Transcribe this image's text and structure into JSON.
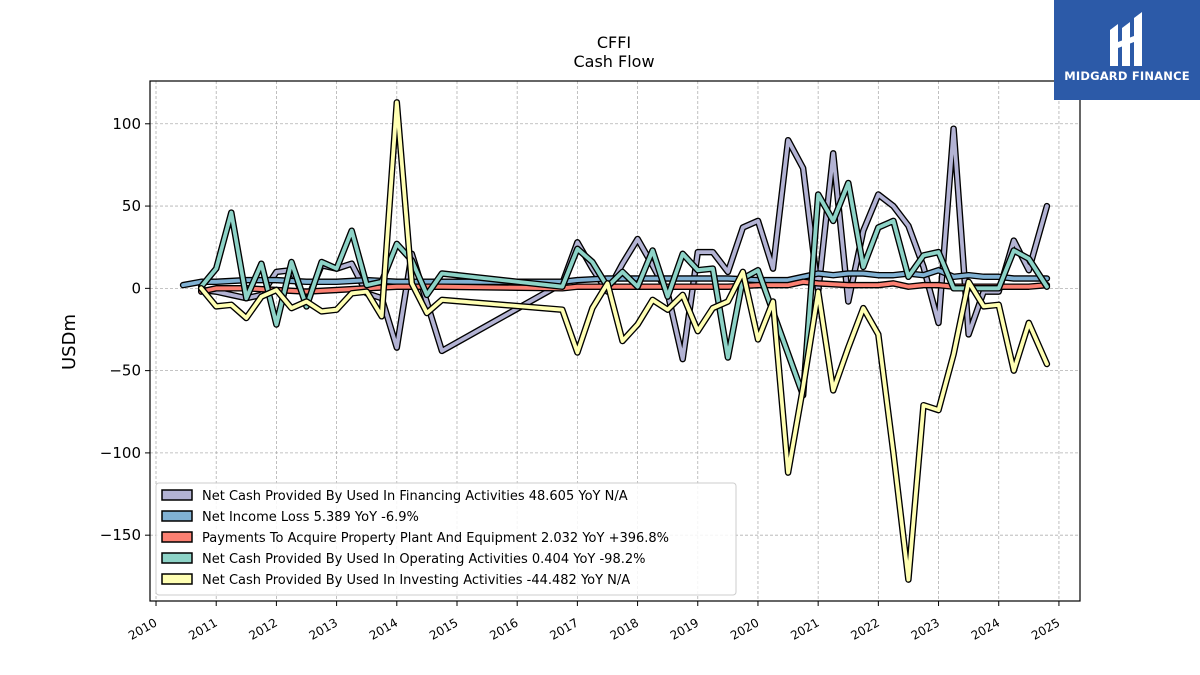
{
  "logo": {
    "text": "MIDGARD FINANCE",
    "color": "#2c5aa8"
  },
  "chart_data": {
    "type": "line",
    "title": "CFFI",
    "subtitle": "Cash Flow",
    "ylabel": "USDm",
    "xlabel": "",
    "ylim": [
      -190,
      126
    ],
    "xlim": [
      2009.9,
      2025.35
    ],
    "x_ticks": [
      2010,
      2011,
      2012,
      2013,
      2014,
      2015,
      2016,
      2017,
      2018,
      2019,
      2020,
      2021,
      2022,
      2023,
      2024,
      2025
    ],
    "y_ticks": [
      100,
      50,
      0,
      -50,
      -100,
      -150
    ],
    "y_tick_labels": [
      "100",
      "50",
      "0",
      "−50",
      "−100",
      "−150"
    ],
    "grid": true,
    "legend_position": "lower-left",
    "series": [
      {
        "name": "Net Cash Provided By Used In Financing Activities  48.605 YoY N/A",
        "color": "#b3b3d4",
        "points": [
          [
            2010.75,
            -1
          ],
          [
            2011.0,
            -2
          ],
          [
            2011.25,
            -4
          ],
          [
            2011.5,
            -6
          ],
          [
            2011.75,
            -4
          ],
          [
            2012.0,
            10
          ],
          [
            2012.25,
            11
          ],
          [
            2012.5,
            -8
          ],
          [
            2012.75,
            14
          ],
          [
            2013.0,
            12
          ],
          [
            2013.25,
            15
          ],
          [
            2013.5,
            -3
          ],
          [
            2013.75,
            -6
          ],
          [
            2014.0,
            -36
          ],
          [
            2014.25,
            21
          ],
          [
            2014.75,
            -38
          ],
          [
            2016.75,
            3
          ],
          [
            2017.0,
            28
          ],
          [
            2017.25,
            12
          ],
          [
            2017.5,
            -2
          ],
          [
            2017.75,
            15
          ],
          [
            2018.0,
            30
          ],
          [
            2018.25,
            14
          ],
          [
            2018.5,
            -3
          ],
          [
            2018.75,
            -43
          ],
          [
            2019.0,
            22
          ],
          [
            2019.25,
            22
          ],
          [
            2019.5,
            10
          ],
          [
            2019.75,
            37
          ],
          [
            2020.0,
            41
          ],
          [
            2020.25,
            12
          ],
          [
            2020.5,
            90
          ],
          [
            2020.75,
            73
          ],
          [
            2021.0,
            -2
          ],
          [
            2021.25,
            82
          ],
          [
            2021.5,
            -8
          ],
          [
            2021.75,
            35
          ],
          [
            2022.0,
            57
          ],
          [
            2022.25,
            50
          ],
          [
            2022.5,
            38
          ],
          [
            2022.75,
            13
          ],
          [
            2023.0,
            -21
          ],
          [
            2023.25,
            97
          ],
          [
            2023.5,
            -28
          ],
          [
            2023.75,
            -2
          ],
          [
            2024.0,
            -2
          ],
          [
            2024.25,
            29
          ],
          [
            2024.5,
            11
          ],
          [
            2024.8,
            50
          ]
        ]
      },
      {
        "name": "Net Income Loss  5.389 YoY -6.9%",
        "color": "#80b1d3",
        "points": [
          [
            2010.45,
            2
          ],
          [
            2010.75,
            4
          ],
          [
            2011.0,
            4
          ],
          [
            2011.5,
            5
          ],
          [
            2012.0,
            5
          ],
          [
            2012.5,
            4
          ],
          [
            2013.0,
            4
          ],
          [
            2013.5,
            5
          ],
          [
            2014.0,
            4
          ],
          [
            2014.75,
            4
          ],
          [
            2016.75,
            4
          ],
          [
            2017.0,
            5
          ],
          [
            2017.5,
            6
          ],
          [
            2018.0,
            6
          ],
          [
            2018.5,
            6
          ],
          [
            2019.0,
            6
          ],
          [
            2019.5,
            6
          ],
          [
            2020.0,
            5
          ],
          [
            2020.5,
            5
          ],
          [
            2020.75,
            7
          ],
          [
            2021.0,
            9
          ],
          [
            2021.25,
            8
          ],
          [
            2021.5,
            9
          ],
          [
            2021.75,
            9
          ],
          [
            2022.0,
            8
          ],
          [
            2022.25,
            8
          ],
          [
            2022.5,
            9
          ],
          [
            2022.75,
            8
          ],
          [
            2023.0,
            11
          ],
          [
            2023.25,
            7
          ],
          [
            2023.5,
            8
          ],
          [
            2023.75,
            7
          ],
          [
            2024.0,
            7
          ],
          [
            2024.25,
            6
          ],
          [
            2024.5,
            6
          ],
          [
            2024.8,
            6
          ]
        ]
      },
      {
        "name": "Payments To Acquire Property Plant And Equipment  2.032 YoY +396.8%",
        "color": "#fb8072",
        "points": [
          [
            2010.75,
            -2
          ],
          [
            2011.0,
            0
          ],
          [
            2011.5,
            0
          ],
          [
            2012.0,
            -1
          ],
          [
            2012.5,
            -2
          ],
          [
            2013.0,
            -1
          ],
          [
            2013.5,
            0
          ],
          [
            2014.0,
            1
          ],
          [
            2014.75,
            1
          ],
          [
            2016.75,
            0
          ],
          [
            2017.0,
            1
          ],
          [
            2017.5,
            1
          ],
          [
            2018.0,
            1
          ],
          [
            2018.5,
            1
          ],
          [
            2019.0,
            1
          ],
          [
            2019.5,
            1
          ],
          [
            2020.0,
            2
          ],
          [
            2020.5,
            2
          ],
          [
            2020.75,
            4
          ],
          [
            2021.0,
            3
          ],
          [
            2021.5,
            2
          ],
          [
            2022.0,
            2
          ],
          [
            2022.25,
            3
          ],
          [
            2022.5,
            1
          ],
          [
            2022.75,
            2
          ],
          [
            2023.0,
            2
          ],
          [
            2023.25,
            1
          ],
          [
            2023.5,
            1
          ],
          [
            2024.0,
            1
          ],
          [
            2024.5,
            1
          ],
          [
            2024.8,
            2
          ]
        ]
      },
      {
        "name": "Net Cash Provided By Used In Operating Activities  0.404 YoY -98.2%",
        "color": "#8dd3c7",
        "points": [
          [
            2010.75,
            1
          ],
          [
            2011.0,
            12
          ],
          [
            2011.25,
            46
          ],
          [
            2011.5,
            -6
          ],
          [
            2011.75,
            15
          ],
          [
            2012.0,
            -22
          ],
          [
            2012.25,
            16
          ],
          [
            2012.5,
            -11
          ],
          [
            2012.75,
            16
          ],
          [
            2013.0,
            12
          ],
          [
            2013.25,
            35
          ],
          [
            2013.5,
            2
          ],
          [
            2013.75,
            4
          ],
          [
            2014.0,
            27
          ],
          [
            2014.25,
            17
          ],
          [
            2014.5,
            -4
          ],
          [
            2014.75,
            9
          ],
          [
            2016.75,
            1
          ],
          [
            2017.0,
            24
          ],
          [
            2017.25,
            16
          ],
          [
            2017.5,
            1
          ],
          [
            2017.75,
            10
          ],
          [
            2018.0,
            1
          ],
          [
            2018.25,
            23
          ],
          [
            2018.5,
            -5
          ],
          [
            2018.75,
            21
          ],
          [
            2019.0,
            11
          ],
          [
            2019.25,
            12
          ],
          [
            2019.5,
            -42
          ],
          [
            2019.75,
            6
          ],
          [
            2020.0,
            11
          ],
          [
            2020.75,
            -65
          ],
          [
            2021.0,
            57
          ],
          [
            2021.25,
            41
          ],
          [
            2021.5,
            64
          ],
          [
            2021.75,
            13
          ],
          [
            2022.0,
            37
          ],
          [
            2022.25,
            41
          ],
          [
            2022.5,
            7
          ],
          [
            2022.75,
            20
          ],
          [
            2023.0,
            22
          ],
          [
            2023.25,
            0
          ],
          [
            2023.5,
            0
          ],
          [
            2023.75,
            0
          ],
          [
            2024.0,
            0
          ],
          [
            2024.25,
            23
          ],
          [
            2024.5,
            18
          ],
          [
            2024.8,
            1
          ]
        ]
      },
      {
        "name": "Net Cash Provided By Used In Investing Activities  -44.482 YoY N/A",
        "color": "#ffffb3",
        "points": [
          [
            2010.75,
            0
          ],
          [
            2011.0,
            -11
          ],
          [
            2011.25,
            -10
          ],
          [
            2011.5,
            -18
          ],
          [
            2011.75,
            -5
          ],
          [
            2012.0,
            -1
          ],
          [
            2012.25,
            -12
          ],
          [
            2012.5,
            -8
          ],
          [
            2012.75,
            -14
          ],
          [
            2013.0,
            -13
          ],
          [
            2013.25,
            -3
          ],
          [
            2013.5,
            -2
          ],
          [
            2013.75,
            -17
          ],
          [
            2014.0,
            113
          ],
          [
            2014.25,
            3
          ],
          [
            2014.5,
            -15
          ],
          [
            2014.75,
            -7
          ],
          [
            2016.75,
            -13
          ],
          [
            2017.0,
            -39
          ],
          [
            2017.25,
            -12
          ],
          [
            2017.5,
            3
          ],
          [
            2017.75,
            -32
          ],
          [
            2018.0,
            -22
          ],
          [
            2018.25,
            -7
          ],
          [
            2018.5,
            -13
          ],
          [
            2018.75,
            -4
          ],
          [
            2019.0,
            -26
          ],
          [
            2019.25,
            -12
          ],
          [
            2019.5,
            -8
          ],
          [
            2019.75,
            10
          ],
          [
            2020.0,
            -31
          ],
          [
            2020.25,
            -8
          ],
          [
            2020.5,
            -112
          ],
          [
            2020.75,
            -60
          ],
          [
            2021.0,
            -2
          ],
          [
            2021.25,
            -62
          ],
          [
            2021.5,
            -36
          ],
          [
            2021.75,
            -12
          ],
          [
            2022.0,
            -28
          ],
          [
            2022.25,
            -100
          ],
          [
            2022.5,
            -177
          ],
          [
            2022.75,
            -71
          ],
          [
            2023.0,
            -74
          ],
          [
            2023.25,
            -40
          ],
          [
            2023.5,
            4
          ],
          [
            2023.75,
            -11
          ],
          [
            2024.0,
            -10
          ],
          [
            2024.25,
            -50
          ],
          [
            2024.5,
            -21
          ],
          [
            2024.8,
            -46
          ]
        ]
      }
    ]
  }
}
